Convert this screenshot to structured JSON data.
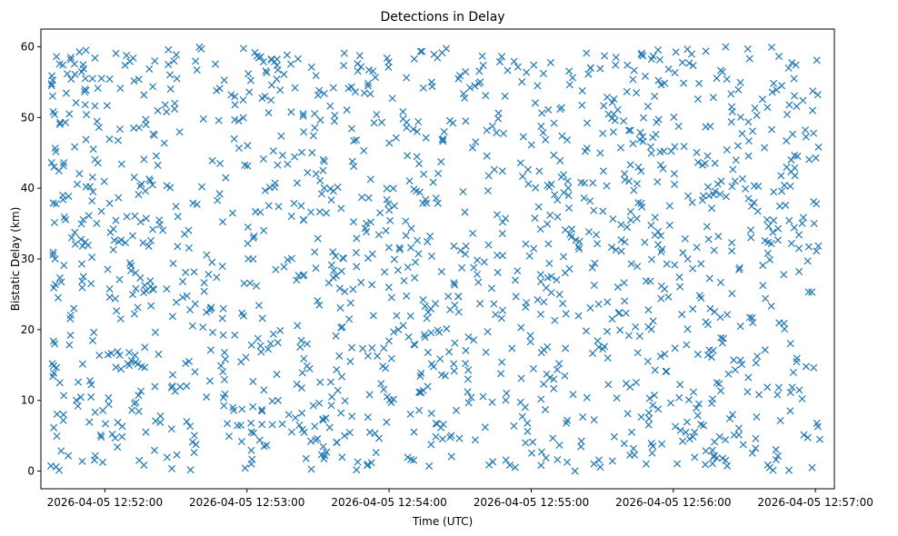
{
  "chart_data": {
    "type": "scatter",
    "title": "Detections in Delay",
    "xlabel": "Time (UTC)",
    "ylabel": "Bistatic Delay (km)",
    "marker": "x",
    "color": "#1f77b4",
    "x_tick_labels": [
      "2026-04-05 12:52:00",
      "2026-04-05 12:53:00",
      "2026-04-05 12:54:00",
      "2026-04-05 12:55:00",
      "2026-04-05 12:56:00",
      "2026-04-05 12:57:00"
    ],
    "x_ticks_seconds": [
      60,
      120,
      180,
      240,
      300,
      360
    ],
    "xlim_seconds": [
      33,
      368
    ],
    "x_origin": "2026-04-05 12:51:00",
    "y_ticks": [
      0,
      10,
      20,
      30,
      40,
      50,
      60
    ],
    "ylim": [
      -2.5,
      62.5
    ],
    "series": [
      {
        "name": "detections",
        "point_count": 1500,
        "time_range_seconds": [
          37,
          362
        ],
        "delay_range_km": [
          0,
          60
        ],
        "points_sample_seconds_km": [
          [
            37.5,
            54.5
          ],
          [
            37.8,
            15.2
          ],
          [
            38.2,
            50.8
          ],
          [
            38.5,
            43.0
          ],
          [
            38.8,
            18.0
          ],
          [
            39.0,
            30.0
          ],
          [
            39.4,
            0.6
          ],
          [
            39.6,
            58.6
          ],
          [
            40.3,
            24.5
          ],
          [
            41.0,
            12.5
          ],
          [
            45.0,
            50.5
          ],
          [
            46.0,
            33.0
          ],
          [
            48.0,
            10.0
          ],
          [
            52.0,
            59.5
          ],
          [
            55.0,
            39.5
          ]
        ]
      }
    ]
  }
}
